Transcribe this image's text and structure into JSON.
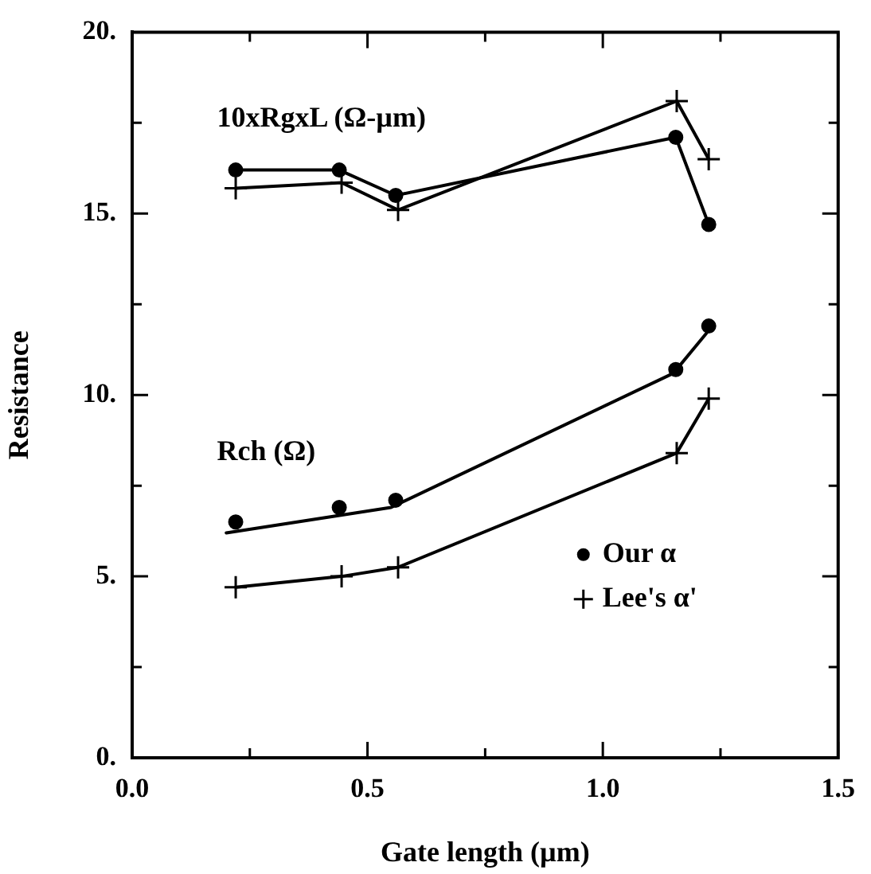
{
  "chart_data": {
    "type": "line",
    "xlabel": "Gate length (µm)",
    "ylabel": "Resistance",
    "xlim": [
      0,
      1.5
    ],
    "ylim": [
      0,
      20
    ],
    "xticks": [
      {
        "value": 0,
        "label": "0.0"
      },
      {
        "value": 0.25,
        "label": null
      },
      {
        "value": 0.5,
        "label": "0.5"
      },
      {
        "value": 0.75,
        "label": null
      },
      {
        "value": 1,
        "label": "1.0"
      },
      {
        "value": 1.25,
        "label": null
      },
      {
        "value": 1.5,
        "label": "1.5"
      }
    ],
    "yticks": [
      {
        "value": 0,
        "label": "0."
      },
      {
        "value": 2.5,
        "label": null
      },
      {
        "value": 5,
        "label": "5."
      },
      {
        "value": 7.5,
        "label": null
      },
      {
        "value": 10,
        "label": "10."
      },
      {
        "value": 12.5,
        "label": null
      },
      {
        "value": 15,
        "label": "15."
      },
      {
        "value": 17.5,
        "label": null
      },
      {
        "value": 20,
        "label": "20."
      }
    ],
    "grid": false,
    "legend": "bottom right",
    "line_style": "solid",
    "annotations": [
      "10xRgxL (Ω-µm)",
      "Rch (Ω)"
    ],
    "series": [
      {
        "name": "Our α",
        "marker": "circle",
        "color": "#000000",
        "x": [
          0.22,
          0.44,
          0.56,
          1.155,
          1.225
        ],
        "values": [
          16.2,
          16.2,
          15.5,
          17.1,
          14.7
        ]
      },
      {
        "name": "Lee's α'",
        "marker": "cross",
        "color": "#000000",
        "x": [
          0.22,
          0.445,
          0.565,
          1.157,
          1.225
        ],
        "values": [
          15.7,
          15.85,
          15.1,
          18.1,
          16.5
        ]
      },
      {
        "type": "scatter",
        "marker": "circle",
        "color": "#000000",
        "x": [
          0.22,
          0.44,
          0.56,
          1.155,
          1.225
        ],
        "values": [
          6.5,
          6.9,
          7.1,
          10.7,
          11.9
        ]
      },
      {
        "marker": "none",
        "color": "#000000",
        "x": [
          0.2,
          0.55,
          1.15,
          1.22
        ],
        "values": [
          6.2,
          6.9,
          10.6,
          11.7
        ]
      },
      {
        "marker": "cross",
        "color": "#000000",
        "x": [
          0.22,
          0.445,
          0.565,
          1.157,
          1.225
        ],
        "values": [
          4.7,
          5.0,
          5.25,
          8.4,
          9.9
        ]
      }
    ]
  }
}
